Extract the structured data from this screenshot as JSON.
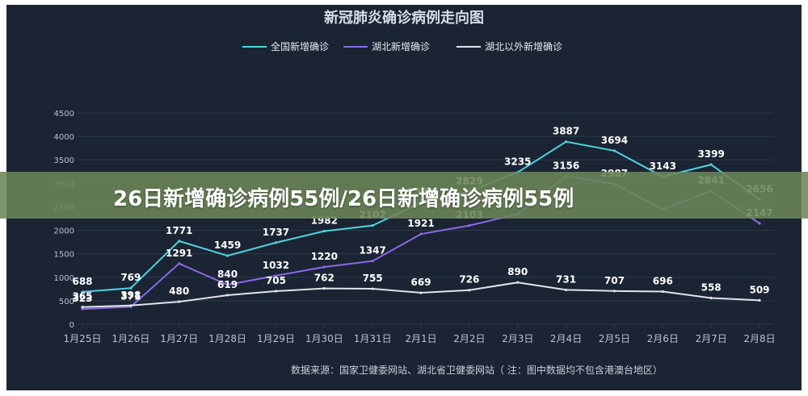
{
  "overlay_caption": "26日新增确诊病例55例/26日新增确诊病例55例",
  "source_note": "数据来源：国家卫健委网站、湖北省卫健委网站（ 注：图中数据均不包含港澳台地区）",
  "colors": {
    "background": "#1a2433",
    "national": "#4fd3e0",
    "hubei": "#8b68e8",
    "outside_hubei": "#e3e3ea",
    "axis_text": "#b9c2cf",
    "grid": "#2c3a4c",
    "overlay": "#6c8658"
  },
  "chart_data": {
    "type": "line",
    "title": "新冠肺炎确诊病例走向图",
    "xlabel": "",
    "ylabel": "",
    "ylim": [
      0,
      4500
    ],
    "yticks": [
      0,
      500,
      1000,
      1500,
      2000,
      2500,
      3000,
      3500,
      4000,
      4500
    ],
    "grid": true,
    "legend_position": "top-center",
    "categories": [
      "1月25日",
      "1月26日",
      "1月27日",
      "1月28日",
      "1月29日",
      "1月30日",
      "1月31日",
      "2月1日",
      "2月2日",
      "2月3日",
      "2月4日",
      "2月5日",
      "2月6日",
      "2月7日",
      "2月8日"
    ],
    "series": [
      {
        "name": "全国新增确诊",
        "color": "#4fd3e0",
        "values": [
          688,
          769,
          1771,
          1459,
          1737,
          1982,
          2102,
          2590,
          2829,
          3235,
          3887,
          3694,
          3143,
          3399,
          2656
        ]
      },
      {
        "name": "湖北新增确诊",
        "color": "#8b68e8",
        "values": [
          323,
          371,
          1291,
          840,
          1032,
          1220,
          1347,
          1921,
          2103,
          2345,
          3156,
          2987,
          2447,
          2841,
          2147
        ]
      },
      {
        "name": "湖北以外新增确诊",
        "color": "#e3e3ea",
        "values": [
          365,
          398,
          480,
          619,
          705,
          762,
          755,
          669,
          726,
          890,
          731,
          707,
          696,
          558,
          509
        ]
      }
    ],
    "data_labels": [
      {
        "x": "1月25日",
        "series": 0,
        "text": "688"
      },
      {
        "x": "1月26日",
        "series": 0,
        "text": "769"
      },
      {
        "x": "1月27日",
        "series": 0,
        "text": "1771"
      },
      {
        "x": "1月28日",
        "series": 0,
        "text": "1459"
      },
      {
        "x": "1月29日",
        "series": 0,
        "text": "1737"
      },
      {
        "x": "1月30日",
        "series": 0,
        "text": "1982"
      },
      {
        "x": "1月31日",
        "series": 0,
        "text": "2102"
      },
      {
        "x": "2月1日",
        "series": 0,
        "text": "2590"
      },
      {
        "x": "2月2日",
        "series": 0,
        "text": "2829"
      },
      {
        "x": "2月3日",
        "series": 0,
        "text": "3235"
      },
      {
        "x": "2月4日",
        "series": 0,
        "text": "3887"
      },
      {
        "x": "2月5日",
        "series": 0,
        "text": "3694"
      },
      {
        "x": "2月6日",
        "series": 0,
        "text": "3143"
      },
      {
        "x": "2月7日",
        "series": 0,
        "text": "3399"
      },
      {
        "x": "2月8日",
        "series": 0,
        "text": "2656"
      },
      {
        "x": "1月25日",
        "series": 1,
        "text": "323"
      },
      {
        "x": "1月26日",
        "series": 1,
        "text": "371"
      },
      {
        "x": "1月27日",
        "series": 1,
        "text": "1291"
      },
      {
        "x": "1月28日",
        "series": 1,
        "text": "840"
      },
      {
        "x": "1月29日",
        "series": 1,
        "text": "1032"
      },
      {
        "x": "1月30日",
        "series": 1,
        "text": "1220"
      },
      {
        "x": "1月31日",
        "series": 1,
        "text": "1347"
      },
      {
        "x": "2月1日",
        "series": 1,
        "text": "1921"
      },
      {
        "x": "2月2日",
        "series": 1,
        "text": "2103"
      },
      {
        "x": "2月4日",
        "series": 1,
        "text": "3156"
      },
      {
        "x": "2月5日",
        "series": 1,
        "text": "2987"
      },
      {
        "x": "2月7日",
        "series": 1,
        "text": "2841"
      },
      {
        "x": "2月8日",
        "series": 1,
        "text": "2147"
      },
      {
        "x": "1月25日",
        "series": 2,
        "text": "365"
      },
      {
        "x": "1月26日",
        "series": 2,
        "text": "398"
      },
      {
        "x": "1月27日",
        "series": 2,
        "text": "480"
      },
      {
        "x": "1月28日",
        "series": 2,
        "text": "619"
      },
      {
        "x": "1月29日",
        "series": 2,
        "text": "705"
      },
      {
        "x": "1月30日",
        "series": 2,
        "text": "762"
      },
      {
        "x": "1月31日",
        "series": 2,
        "text": "755"
      },
      {
        "x": "2月1日",
        "series": 2,
        "text": "669"
      },
      {
        "x": "2月2日",
        "series": 2,
        "text": "726"
      },
      {
        "x": "2月3日",
        "series": 2,
        "text": "890"
      },
      {
        "x": "2月4日",
        "series": 2,
        "text": "731"
      },
      {
        "x": "2月5日",
        "series": 2,
        "text": "707"
      },
      {
        "x": "2月6日",
        "series": 2,
        "text": "696"
      },
      {
        "x": "2月7日",
        "series": 2,
        "text": "558"
      },
      {
        "x": "2月8日",
        "series": 2,
        "text": "509"
      }
    ]
  }
}
